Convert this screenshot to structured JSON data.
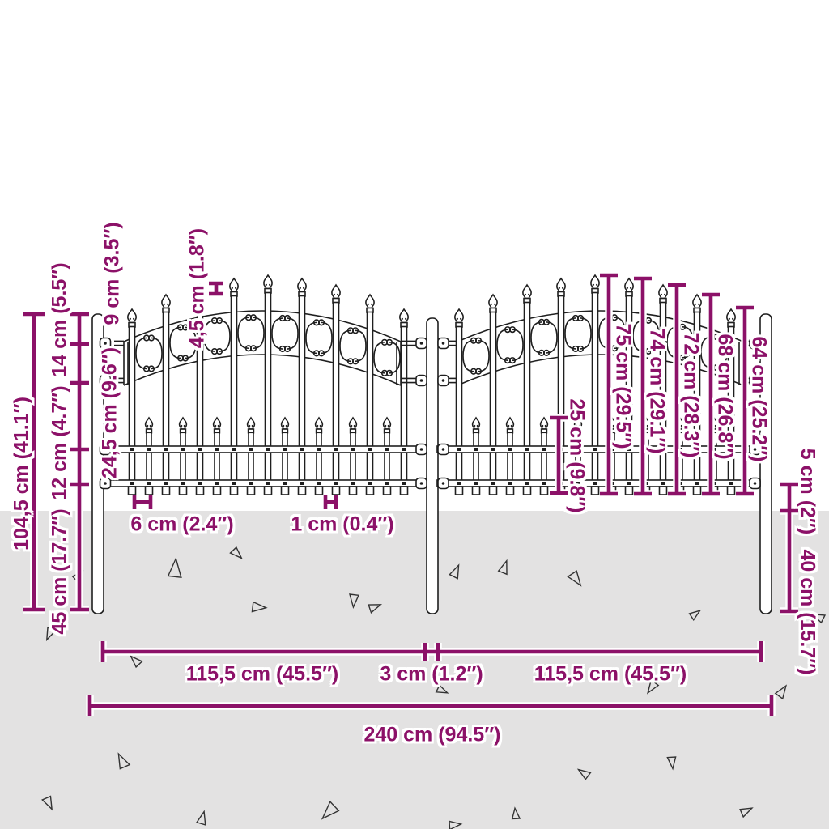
{
  "illustration": {
    "subject": "garden-fence-with-spear-top-dimension-diagram",
    "panels": 2,
    "posts": 3
  },
  "colors": {
    "dimension": "#8C1168",
    "line": "#1f1f1f",
    "ground": "#e3e2e2",
    "background": "#ffffff"
  },
  "dimensions": {
    "total_height": "104,5 cm (41.1″)",
    "post_top_segment": "14 cm (5.5″)",
    "rail_segment": "12 cm (4.7″)",
    "underground_depth": "45 cm (17.7″)",
    "mid_segment": "24,5 cm (9.6″)",
    "finial_offset": "9 cm (3.5″)",
    "spear_tip_gap": "4,5 cm (1.8″)",
    "picket_spacing": "6 cm (2.4″)",
    "picket_thickness": "1 cm (0.4″)",
    "short_picket_height": "25 cm (9.8″)",
    "picket_height_1": "75 cm (29.5″)",
    "picket_height_2": "74 cm (29.1″)",
    "picket_height_3": "72 cm (28.3″)",
    "picket_height_4": "68 cm (26.8″)",
    "picket_height_5": "64 cm (25.2″)",
    "rail_to_ground": "5 cm (2″)",
    "post_underground": "40 cm (15.7″)",
    "panel_width_left": "115,5 cm (45.5″)",
    "post_gap": "3 cm (1.2″)",
    "panel_width_right": "115,5 cm (45.5″)",
    "total_width": "240 cm (94.5″)"
  }
}
